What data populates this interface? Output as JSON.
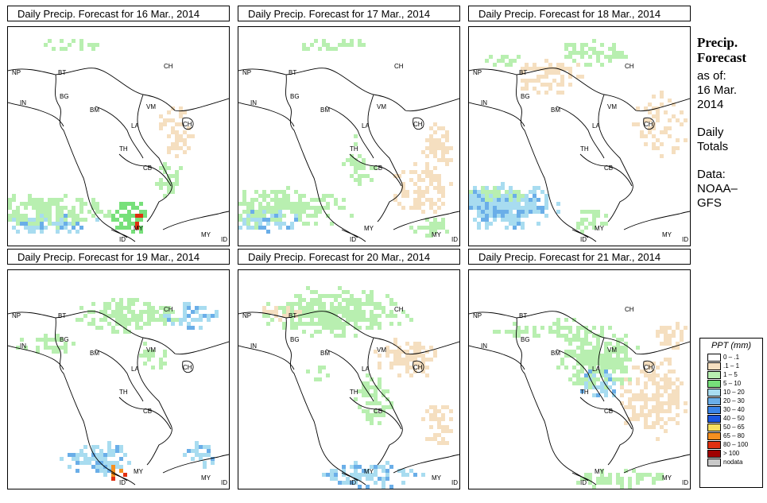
{
  "panels": [
    {
      "title": "Daily Precip. Forecast for  16 Mar., 2014"
    },
    {
      "title": "Daily Precip. Forecast for  17 Mar., 2014"
    },
    {
      "title": "Daily Precip. Forecast for  18 Mar., 2014"
    },
    {
      "title": "Daily Precip. Forecast for  19 Mar., 2014"
    },
    {
      "title": "Daily Precip. Forecast for  20 Mar., 2014"
    },
    {
      "title": "Daily Precip. Forecast for  21 Mar., 2014"
    }
  ],
  "country_labels": [
    "NP",
    "BT",
    "BG",
    "IN",
    "BM",
    "CH",
    "VM",
    "LA",
    "TH",
    "CB",
    "CH",
    "MY",
    "ID",
    "MY",
    "ID"
  ],
  "side": {
    "title_line1": "Precip.",
    "title_line2": "Forecast",
    "asof": "as of:",
    "date_line1": "16 Mar.",
    "date_line2": "2014",
    "totals_line1": "Daily",
    "totals_line2": "Totals",
    "data_line1": "Data:",
    "data_line2": "NOAA–",
    "data_line3": "GFS"
  },
  "legend": {
    "title": "PPT (mm)",
    "items": [
      {
        "label": "0 – .1",
        "color": "#ffffff"
      },
      {
        "label": ".1 – 1",
        "color": "#f5dfc0"
      },
      {
        "label": "1 – 5",
        "color": "#b8efb0"
      },
      {
        "label": "5 – 10",
        "color": "#77e07a"
      },
      {
        "label": "10 – 20",
        "color": "#a8dcf0"
      },
      {
        "label": "20 – 30",
        "color": "#6aaee8"
      },
      {
        "label": "30 – 40",
        "color": "#3a84e8"
      },
      {
        "label": "40 – 50",
        "color": "#1a55e0"
      },
      {
        "label": "50 – 65",
        "color": "#f8e060"
      },
      {
        "label": "65 – 80",
        "color": "#f59020"
      },
      {
        "label": "80 – 100",
        "color": "#e03010"
      },
      {
        "label": "> 100",
        "color": "#a00000"
      },
      {
        "label": "nodata",
        "color": "#c8c8c8"
      }
    ]
  }
}
